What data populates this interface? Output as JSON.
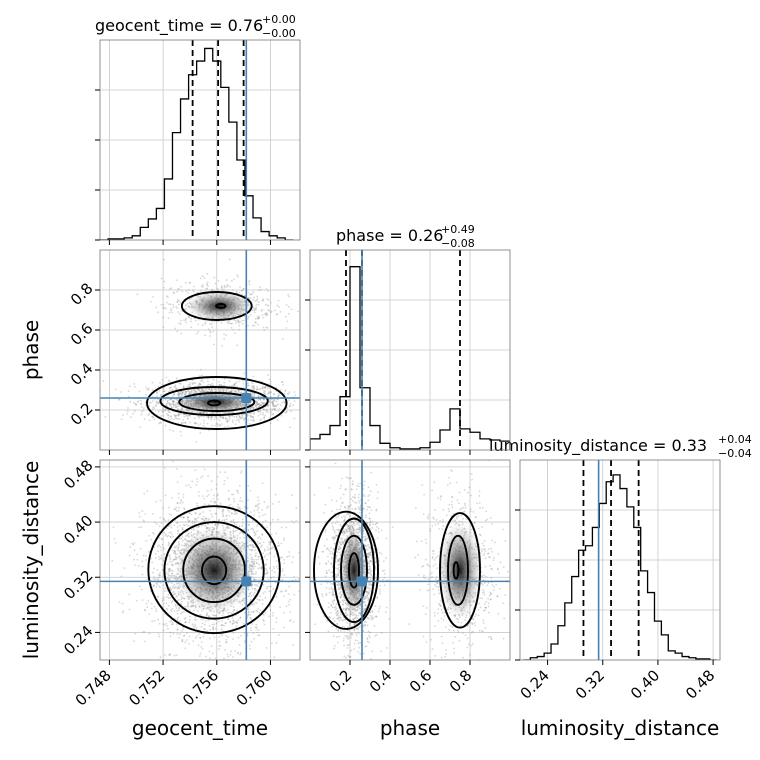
{
  "chart_data": {
    "type": "corner",
    "parameters": [
      "geocent_time",
      "phase",
      "luminosity_distance"
    ],
    "truth": {
      "geocent_time": 0.7582,
      "phase": 0.26,
      "luminosity_distance": 0.314
    },
    "colors": {
      "truth": "#4682b4",
      "hist": "#000000",
      "grid": "#c8c8c8",
      "points": "#8c8c8c"
    },
    "marginals": [
      {
        "parameter": "geocent_time",
        "title_main": "geocent_time = 0.76",
        "title_sup": "+0.00",
        "title_sub": "−0.00",
        "range": [
          0.7473,
          0.7622
        ],
        "bin_edges": [
          0.7473,
          0.7479,
          0.7485,
          0.7491,
          0.7497,
          0.7503,
          0.7509,
          0.7515,
          0.7521,
          0.7527,
          0.7533,
          0.7539,
          0.7545,
          0.7551,
          0.7557,
          0.7563,
          0.7569,
          0.7575,
          0.7581,
          0.7587,
          0.7593,
          0.7599,
          0.7605,
          0.7611,
          0.7617
        ],
        "counts": [
          0,
          1,
          1,
          2,
          4,
          12,
          20,
          30,
          58,
          102,
          134,
          157,
          170,
          182,
          170,
          145,
          112,
          76,
          42,
          21,
          8,
          4,
          2,
          0
        ],
        "quantiles": [
          0.7542,
          0.7561,
          0.758
        ],
        "ymax": 190,
        "ticks": [],
        "tick_labels": []
      },
      {
        "parameter": "phase",
        "title_main": "phase = 0.26",
        "title_sup": "+0.49",
        "title_sub": "−0.08",
        "range": [
          0.0,
          1.0
        ],
        "bin_edges": [
          0.0,
          0.05,
          0.1,
          0.15,
          0.2,
          0.25,
          0.3,
          0.35,
          0.4,
          0.45,
          0.5,
          0.55,
          0.6,
          0.65,
          0.7,
          0.75,
          0.8,
          0.85,
          0.9,
          0.95,
          1.0
        ],
        "counts": [
          10,
          14,
          22,
          48,
          165,
          56,
          22,
          6,
          2,
          1,
          1,
          2,
          7,
          18,
          37,
          19,
          16,
          10,
          9,
          8
        ],
        "quantiles": [
          0.18,
          0.26,
          0.75
        ],
        "ymax": 180,
        "ticks": [],
        "tick_labels": []
      },
      {
        "parameter": "luminosity_distance",
        "title_main": "luminosity_distance = 0.33",
        "title_sup": "+0.04",
        "title_sub": "−0.04",
        "range": [
          0.2,
          0.49
        ],
        "bin_edges": [
          0.205,
          0.215,
          0.225,
          0.235,
          0.245,
          0.255,
          0.265,
          0.275,
          0.285,
          0.295,
          0.305,
          0.315,
          0.325,
          0.335,
          0.345,
          0.355,
          0.365,
          0.375,
          0.385,
          0.395,
          0.405,
          0.415,
          0.425,
          0.435,
          0.445,
          0.455,
          0.465,
          0.475,
          0.485
        ],
        "counts": [
          0,
          2,
          3,
          6,
          14,
          30,
          50,
          73,
          96,
          100,
          116,
          137,
          156,
          162,
          150,
          134,
          116,
          78,
          59,
          34,
          22,
          8,
          6,
          3,
          2,
          1,
          1,
          0
        ],
        "quantiles": [
          0.292,
          0.332,
          0.372
        ],
        "ymax": 175,
        "ticks": [
          0.24,
          0.32,
          0.4,
          0.48
        ],
        "tick_labels": [
          "0.24",
          "0.32",
          "0.40",
          "0.48"
        ]
      }
    ],
    "axes": {
      "geocent_time": {
        "range": [
          0.7473,
          0.7622
        ],
        "ticks": [
          0.748,
          0.752,
          0.756,
          0.76
        ],
        "tick_labels": [
          "0.748",
          "0.752",
          "0.756",
          "0.760"
        ]
      },
      "phase": {
        "range": [
          0.0,
          1.0
        ],
        "ticks": [
          0.2,
          0.4,
          0.6,
          0.8
        ],
        "tick_labels": [
          "0.2",
          "0.4",
          "0.6",
          "0.8"
        ]
      },
      "luminosity_distance": {
        "range": [
          0.2,
          0.49
        ],
        "ticks": [
          0.24,
          0.32,
          0.4,
          0.48
        ],
        "tick_labels": [
          "0.24",
          "0.32",
          "0.40",
          "0.48"
        ]
      }
    },
    "pairs": [
      {
        "x": "geocent_time",
        "y": "phase",
        "clusters": [
          {
            "center": [
              0.7559,
              0.24
            ],
            "spread": [
              0.0019,
              0.038
            ],
            "weight": 0.78
          },
          {
            "center": [
              0.7562,
              0.72
            ],
            "spread": [
              0.0016,
              0.05
            ],
            "weight": 0.22
          }
        ],
        "contours": [
          {
            "center": [
              0.7558,
              0.235
            ],
            "half_width": [
              0.00045,
              0.012
            ]
          },
          {
            "center": [
              0.756,
              0.24
            ],
            "half_width": [
              0.0028,
              0.045
            ]
          },
          {
            "center": [
              0.7558,
              0.245
            ],
            "half_width": [
              0.004,
              0.07
            ]
          },
          {
            "center": [
              0.756,
              0.235
            ],
            "half_width": [
              0.0052,
              0.13
            ]
          },
          {
            "center": [
              0.7563,
              0.72
            ],
            "half_width": [
              0.00035,
              0.01
            ]
          },
          {
            "center": [
              0.756,
              0.72
            ],
            "half_width": [
              0.0026,
              0.07
            ]
          }
        ]
      },
      {
        "x": "geocent_time",
        "y": "luminosity_distance",
        "clusters": [
          {
            "center": [
              0.7558,
              0.33
            ],
            "spread": [
              0.0019,
              0.04
            ],
            "weight": 1.0
          }
        ],
        "contours": [
          {
            "center": [
              0.7558,
              0.33
            ],
            "half_width": [
              0.0009,
              0.02
            ]
          },
          {
            "center": [
              0.7558,
              0.33
            ],
            "half_width": [
              0.0023,
              0.046
            ]
          },
          {
            "center": [
              0.7558,
              0.33
            ],
            "half_width": [
              0.0037,
              0.07
            ]
          },
          {
            "center": [
              0.7558,
              0.331
            ],
            "half_width": [
              0.0049,
              0.092
            ]
          }
        ]
      },
      {
        "x": "phase",
        "y": "luminosity_distance",
        "clusters": [
          {
            "center": [
              0.22,
              0.33
            ],
            "spread": [
              0.045,
              0.04
            ],
            "weight": 0.72
          },
          {
            "center": [
              0.75,
              0.33
            ],
            "spread": [
              0.07,
              0.045
            ],
            "weight": 0.28
          }
        ],
        "contours": [
          {
            "center": [
              0.22,
              0.33
            ],
            "half_width": [
              0.025,
              0.025
            ]
          },
          {
            "center": [
              0.22,
              0.33
            ],
            "half_width": [
              0.065,
              0.05
            ]
          },
          {
            "center": [
              0.22,
              0.33
            ],
            "half_width": [
              0.1,
              0.075
            ]
          },
          {
            "center": [
              0.18,
              0.33
            ],
            "half_width": [
              0.16,
              0.085
            ]
          },
          {
            "center": [
              0.73,
              0.33
            ],
            "half_width": [
              0.012,
              0.012
            ]
          },
          {
            "center": [
              0.74,
              0.33
            ],
            "half_width": [
              0.05,
              0.05
            ]
          },
          {
            "center": [
              0.75,
              0.33
            ],
            "half_width": [
              0.1,
              0.083
            ]
          }
        ]
      }
    ]
  }
}
